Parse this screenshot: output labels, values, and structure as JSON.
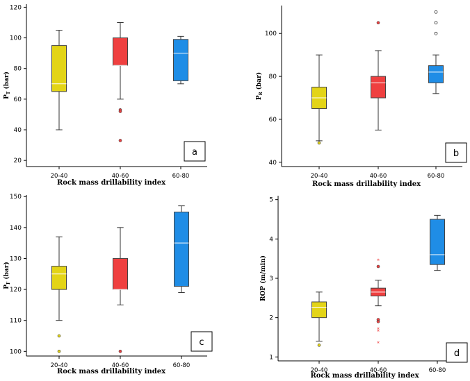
{
  "chart_data": [
    {
      "type": "box",
      "panel_label": "a",
      "ylabel_main": "P",
      "ylabel_sub": "T",
      "ylabel_unit": "(bar)",
      "xlabel": "Rock mass drillability index",
      "categories": [
        "20-40",
        "40-60",
        "60-80"
      ],
      "colors": [
        "#e3d417",
        "#ef4040",
        "#1f8de6"
      ],
      "yticks": [
        20,
        40,
        60,
        80,
        100,
        120
      ],
      "ylim": [
        16,
        122
      ],
      "boxes": [
        {
          "min": 40,
          "q1": 65,
          "median": 70,
          "q3": 95,
          "max": 105,
          "outliers": [],
          "outlier_style": "circle"
        },
        {
          "min": 60,
          "q1": 82,
          "median": 82,
          "q3": 100,
          "max": 110,
          "outliers": [
            53,
            52,
            33
          ],
          "outlier_style": "circle"
        },
        {
          "min": 70,
          "q1": 72,
          "median": 90,
          "q3": 99,
          "max": 101,
          "outliers": [],
          "outlier_style": "circle"
        }
      ]
    },
    {
      "type": "box",
      "panel_label": "b",
      "ylabel_main": "P",
      "ylabel_sub": "R",
      "ylabel_unit": "(bar)",
      "xlabel": "Rock mass drillability index",
      "categories": [
        "20-40",
        "40-60",
        "60-80"
      ],
      "colors": [
        "#e3d417",
        "#ef4040",
        "#1f8de6"
      ],
      "yticks": [
        40,
        60,
        80,
        100
      ],
      "ylim": [
        38,
        113
      ],
      "boxes": [
        {
          "min": 50,
          "q1": 65,
          "median": 70,
          "q3": 75,
          "max": 90,
          "outliers": [
            49
          ],
          "outlier_style": "circle"
        },
        {
          "min": 55,
          "q1": 70,
          "median": 77,
          "q3": 80,
          "max": 92,
          "outliers": [
            105
          ],
          "outlier_style": "circle"
        },
        {
          "min": 72,
          "q1": 77,
          "median": 82,
          "q3": 85,
          "max": 90,
          "outliers": [
            100,
            105,
            110
          ],
          "outlier_style": "hollow"
        }
      ]
    },
    {
      "type": "box",
      "panel_label": "c",
      "ylabel_main": "P",
      "ylabel_sub": "F",
      "ylabel_unit": "(bar)",
      "xlabel": "Rock mass drillability index",
      "categories": [
        "20-40",
        "40-60",
        "60-80"
      ],
      "colors": [
        "#e3d417",
        "#ef4040",
        "#1f8de6"
      ],
      "yticks": [
        100,
        110,
        120,
        130,
        140,
        150
      ],
      "ylim": [
        98.5,
        150.5
      ],
      "boxes": [
        {
          "min": 110,
          "q1": 120,
          "median": 125,
          "q3": 127.5,
          "max": 137,
          "outliers": [
            105,
            100
          ],
          "outlier_style": "circle"
        },
        {
          "min": 115,
          "q1": 120,
          "median": 120,
          "q3": 130,
          "max": 140,
          "outliers": [
            100
          ],
          "outlier_style": "circle"
        },
        {
          "min": 119,
          "q1": 121,
          "median": 135,
          "q3": 145,
          "max": 147,
          "outliers": [],
          "outlier_style": "circle"
        }
      ]
    },
    {
      "type": "box",
      "panel_label": "d",
      "ylabel_main": "ROP",
      "ylabel_sub": "",
      "ylabel_unit": "(m/min)",
      "xlabel": "Rock mass drillability index",
      "categories": [
        "20-40",
        "40-60",
        "60-80"
      ],
      "colors": [
        "#e3d417",
        "#ef4040",
        "#1f8de6"
      ],
      "yticks": [
        1,
        2,
        3,
        4,
        5
      ],
      "ylim": [
        0.9,
        5.1
      ],
      "boxes": [
        {
          "min": 1.4,
          "q1": 2.0,
          "median": 2.25,
          "q3": 2.4,
          "max": 2.65,
          "outliers": [
            1.3
          ],
          "outlier_style": "circle"
        },
        {
          "min": 2.3,
          "q1": 2.55,
          "median": 2.65,
          "q3": 2.75,
          "max": 2.95,
          "outliers": [
            3.45,
            3.3,
            1.95,
            1.9,
            1.7,
            1.65,
            1.35
          ],
          "outlier_style": "mixed"
        },
        {
          "min": 3.2,
          "q1": 3.35,
          "median": 3.6,
          "q3": 4.5,
          "max": 4.6,
          "outliers": [],
          "outlier_style": "circle"
        }
      ]
    }
  ]
}
